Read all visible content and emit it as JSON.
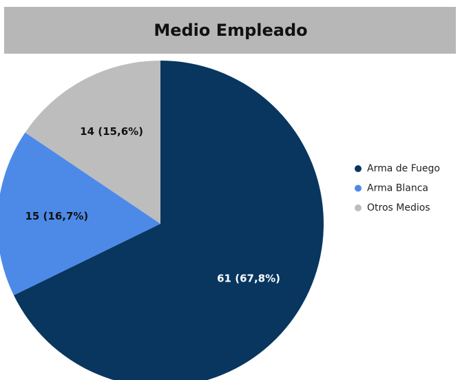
{
  "chart_data": {
    "type": "pie",
    "title": "Medio Empleado",
    "categories": [
      "Arma de Fuego",
      "Arma Blanca",
      "Otros Medios"
    ],
    "values": [
      61,
      15,
      14
    ],
    "value_labels": [
      "61 (67,8%)",
      "15 (16,7%)",
      "14 (15,6%)"
    ],
    "colors": [
      "#08365f",
      "#4d8ae8",
      "#bdbdbd"
    ],
    "label_colors": [
      "#ffffff",
      "#111111",
      "#111111"
    ],
    "legend": "right"
  }
}
